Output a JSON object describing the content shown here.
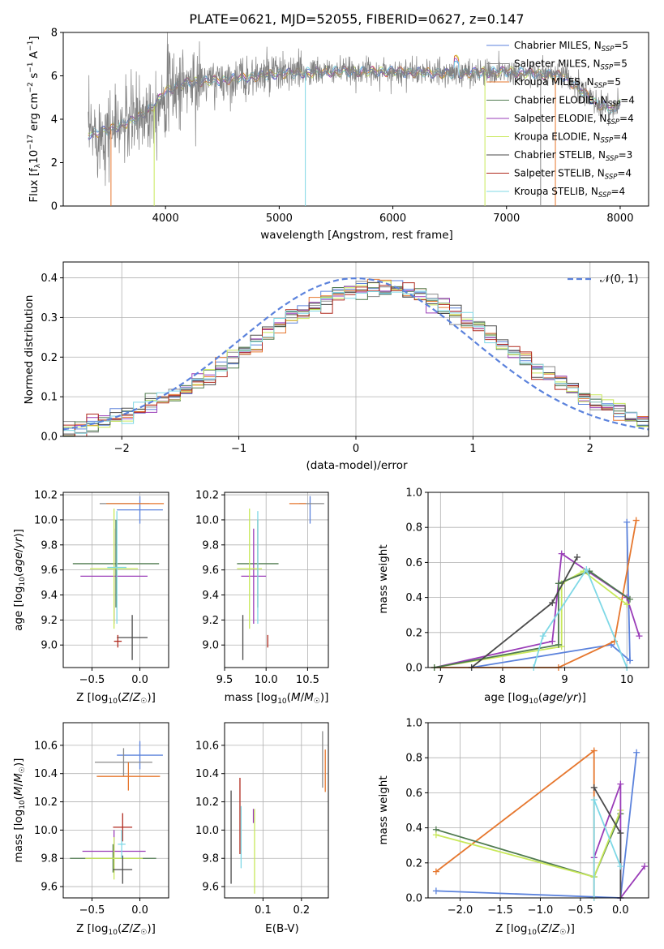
{
  "figure": {
    "title": "PLATE=0621, MJD=52055, FIBERID=0627, z=0.147"
  },
  "colors": {
    "Chabrier MILES": "#5b82dc",
    "Salpeter MILES": "#8a8a8a",
    "Kroupa MILES": "#e6772e",
    "Chabrier ELODIE": "#4f7a4f",
    "Salpeter ELODIE": "#9a3cb8",
    "Kroupa ELODIE": "#c8e85a",
    "Chabrier STELIB": "#4a4a4a",
    "Salpeter STELIB": "#b02a1e",
    "Kroupa STELIB": "#7fd8e6",
    "gaussian": "#5b82dc"
  },
  "chart_data": [
    {
      "id": "spectrum",
      "type": "line",
      "xlabel": "wavelength [Angstrom, rest frame]",
      "ylabel": "Flux [f_λ10^-17 erg cm^-2 s^-1 A^-1]",
      "xlim": [
        3100,
        8250
      ],
      "ylim": [
        0,
        8
      ],
      "xticks": [
        4000,
        5000,
        6000,
        7000,
        8000
      ],
      "yticks": [
        0,
        2,
        4,
        6,
        8
      ],
      "continuum": [
        [
          3320,
          3.3
        ],
        [
          3500,
          3.5
        ],
        [
          3700,
          3.9
        ],
        [
          3900,
          4.6
        ],
        [
          4000,
          5.3
        ],
        [
          4200,
          5.7
        ],
        [
          4500,
          5.8
        ],
        [
          5000,
          6.1
        ],
        [
          5500,
          6.2
        ],
        [
          6000,
          6.2
        ],
        [
          6500,
          6.1
        ],
        [
          7000,
          6.2
        ],
        [
          7500,
          6.0
        ],
        [
          7800,
          4.7
        ],
        [
          7950,
          4.4
        ],
        [
          8000,
          4.9
        ]
      ],
      "legend": [
        {
          "label": "Chabrier MILES",
          "nssp": "N_SSP=5"
        },
        {
          "label": "Salpeter MILES",
          "nssp": "N_SSP=5"
        },
        {
          "label": "Kroupa MILES",
          "nssp": "N_SSP=5"
        },
        {
          "label": "Chabrier ELODIE",
          "nssp": "N_SSP=4"
        },
        {
          "label": "Salpeter ELODIE",
          "nssp": "N_SSP=4"
        },
        {
          "label": "Kroupa ELODIE",
          "nssp": "N_SSP=4"
        },
        {
          "label": "Chabrier STELIB",
          "nssp": "N_SSP=3"
        },
        {
          "label": "Salpeter STELIB",
          "nssp": "N_SSP=4"
        },
        {
          "label": "Kroupa STELIB",
          "nssp": "N_SSP=4"
        }
      ],
      "legend_placement": "lower-right",
      "grid": false
    },
    {
      "id": "residuals",
      "type": "area",
      "xlabel": "(data-model)/error",
      "ylabel": "Normed distribution",
      "xlim": [
        -2.5,
        2.5
      ],
      "ylim": [
        0,
        0.44
      ],
      "xticks": [
        -2,
        -1,
        0,
        1,
        2
      ],
      "yticks": [
        0.0,
        0.1,
        0.2,
        0.3,
        0.4
      ],
      "legend": [
        {
          "label": "𝒩(0, 1)"
        }
      ],
      "legend_placement": "upper-right",
      "grid": true
    },
    {
      "id": "age_vs_Z",
      "type": "scatter",
      "xlabel": "Z [log10(Z/Z☉)]",
      "ylabel": "age  [log10(age/yr)]",
      "xlim": [
        -0.8,
        0.3
      ],
      "ylim": [
        8.82,
        10.22
      ],
      "xticks": [
        -0.5,
        0.0
      ],
      "yticks": [
        9.0,
        9.2,
        9.4,
        9.6,
        9.8,
        10.0,
        10.2
      ],
      "grid": true,
      "points": [
        {
          "model": "Chabrier MILES",
          "x": 0.0,
          "xerr": 0.24,
          "y": 10.08,
          "yerr": 0.11
        },
        {
          "model": "Salpeter MILES",
          "x": -0.16,
          "xerr": 0.26,
          "y": 10.13,
          "yerr": 0.0
        },
        {
          "model": "Kroupa MILES",
          "x": -0.05,
          "xerr": 0.3,
          "y": 10.13,
          "yerr": 0.0
        },
        {
          "model": "Chabrier ELODIE",
          "x": -0.25,
          "xerr": 0.45,
          "y": 9.65,
          "yerr": 0.35
        },
        {
          "model": "Salpeter ELODIE",
          "x": -0.27,
          "xerr": 0.35,
          "y": 9.55,
          "yerr": 0.38
        },
        {
          "model": "Kroupa ELODIE",
          "x": -0.27,
          "xerr": 0.25,
          "y": 9.61,
          "yerr": 0.48
        },
        {
          "model": "Chabrier STELIB",
          "x": -0.08,
          "xerr": 0.16,
          "y": 9.06,
          "yerr": 0.18
        },
        {
          "model": "Salpeter STELIB",
          "x": -0.23,
          "xerr": 0.04,
          "y": 9.03,
          "yerr": 0.05
        },
        {
          "model": "Kroupa STELIB",
          "x": -0.24,
          "xerr": 0.1,
          "y": 9.62,
          "yerr": 0.45
        }
      ]
    },
    {
      "id": "age_vs_mass",
      "type": "scatter",
      "xlabel": "mass [log10(M/M☉)]",
      "ylabel": "",
      "xlim": [
        9.5,
        10.75
      ],
      "ylim": [
        8.82,
        10.22
      ],
      "xticks": [
        9.5,
        10.0,
        10.5
      ],
      "yticks": [
        9.0,
        9.2,
        9.4,
        9.6,
        9.8,
        10.0,
        10.2
      ],
      "grid": true,
      "points": [
        {
          "model": "Chabrier MILES",
          "x": 10.53,
          "xerr": 0.0,
          "y": 10.08,
          "yerr": 0.11
        },
        {
          "model": "Salpeter MILES",
          "x": 10.55,
          "xerr": 0.15,
          "y": 10.13,
          "yerr": 0.0
        },
        {
          "model": "Kroupa MILES",
          "x": 10.38,
          "xerr": 0.1,
          "y": 10.13,
          "yerr": 0.0
        },
        {
          "model": "Chabrier ELODIE",
          "x": 9.9,
          "xerr": 0.25,
          "y": 9.65,
          "yerr": 0.35
        },
        {
          "model": "Salpeter ELODIE",
          "x": 9.85,
          "xerr": 0.15,
          "y": 9.55,
          "yerr": 0.38
        },
        {
          "model": "Kroupa ELODIE",
          "x": 9.8,
          "xerr": 0.15,
          "y": 9.61,
          "yerr": 0.48
        },
        {
          "model": "Chabrier STELIB",
          "x": 9.72,
          "xerr": 0.0,
          "y": 9.06,
          "yerr": 0.18
        },
        {
          "model": "Salpeter STELIB",
          "x": 10.02,
          "xerr": 0.0,
          "y": 9.03,
          "yerr": 0.05
        },
        {
          "model": "Kroupa STELIB",
          "x": 9.9,
          "xerr": 0.0,
          "y": 9.62,
          "yerr": 0.45
        }
      ]
    },
    {
      "id": "mass_weight_vs_age",
      "type": "line",
      "xlabel": "age  [log10(age/yr)]",
      "ylabel": "mass weight",
      "xlim": [
        6.8,
        10.35
      ],
      "ylim": [
        0,
        1
      ],
      "xticks": [
        7,
        8,
        9,
        10
      ],
      "yticks": [
        0.0,
        0.2,
        0.4,
        0.6,
        0.8,
        1.0
      ],
      "grid": true,
      "series": [
        {
          "name": "Chabrier MILES",
          "x": [
            10.0,
            10.05,
            9.75,
            7.5
          ],
          "y": [
            0.83,
            0.04,
            0.13,
            0.0
          ]
        },
        {
          "name": "Kroupa MILES",
          "x": [
            10.15,
            9.8,
            8.9,
            6.9
          ],
          "y": [
            0.84,
            0.15,
            0.0,
            0.0
          ]
        },
        {
          "name": "Salpeter ELODIE",
          "x": [
            10.2,
            10.0,
            8.95,
            8.8,
            6.9
          ],
          "y": [
            0.18,
            0.4,
            0.65,
            0.15,
            0.0
          ]
        },
        {
          "name": "Kroupa ELODIE",
          "x": [
            10.0,
            9.3,
            8.95,
            8.95,
            6.9
          ],
          "y": [
            0.36,
            0.55,
            0.48,
            0.12,
            0.0
          ]
        },
        {
          "name": "Chabrier ELODIE",
          "x": [
            10.05,
            9.4,
            8.9,
            8.9,
            6.9
          ],
          "y": [
            0.39,
            0.55,
            0.48,
            0.13,
            0.0
          ]
        },
        {
          "name": "Chabrier STELIB",
          "x": [
            9.2,
            8.8,
            7.5
          ],
          "y": [
            0.63,
            0.37,
            0.0
          ]
        },
        {
          "name": "Kroupa STELIB",
          "x": [
            8.5,
            8.65,
            9.35,
            10.0
          ],
          "y": [
            0.0,
            0.18,
            0.56,
            0.0
          ]
        }
      ]
    },
    {
      "id": "mass_vs_Z",
      "type": "scatter",
      "xlabel": "Z [log10(Z/Z☉)]",
      "ylabel": "mass [log10(M/M☉)]",
      "xlim": [
        -0.8,
        0.3
      ],
      "ylim": [
        9.52,
        10.76
      ],
      "xticks": [
        -0.5,
        0.0
      ],
      "yticks": [
        9.6,
        9.8,
        10.0,
        10.2,
        10.4,
        10.6
      ],
      "grid": true,
      "points": [
        {
          "model": "Chabrier MILES",
          "x": 0.0,
          "xerr": 0.24,
          "y": 10.53,
          "yerr": 0.1
        },
        {
          "model": "Salpeter MILES",
          "x": -0.17,
          "xerr": 0.3,
          "y": 10.48,
          "yerr": 0.1
        },
        {
          "model": "Kroupa MILES",
          "x": -0.12,
          "xerr": 0.33,
          "y": 10.38,
          "yerr": 0.1
        },
        {
          "model": "Chabrier ELODIE",
          "x": -0.28,
          "xerr": 0.45,
          "y": 9.8,
          "yerr": 0.1
        },
        {
          "model": "Salpeter ELODIE",
          "x": -0.27,
          "xerr": 0.33,
          "y": 9.85,
          "yerr": 0.15
        },
        {
          "model": "Kroupa ELODIE",
          "x": -0.27,
          "xerr": 0.3,
          "y": 9.8,
          "yerr": 0.15
        },
        {
          "model": "Chabrier STELIB",
          "x": -0.18,
          "xerr": 0.1,
          "y": 9.72,
          "yerr": 0.1
        },
        {
          "model": "Salpeter STELIB",
          "x": -0.18,
          "xerr": 0.1,
          "y": 10.02,
          "yerr": 0.1
        },
        {
          "model": "Kroupa STELIB",
          "x": -0.19,
          "xerr": 0.04,
          "y": 9.9,
          "yerr": 0.1
        }
      ]
    },
    {
      "id": "mass_vs_EBV",
      "type": "scatter",
      "xlabel": "E(B-V)",
      "ylabel": "",
      "xlim": [
        0.0,
        0.27
      ],
      "ylim": [
        9.52,
        10.76
      ],
      "xticks": [
        0.1,
        0.2
      ],
      "yticks": [
        9.6,
        9.8,
        10.0,
        10.2,
        10.4,
        10.6
      ],
      "grid": true,
      "points": [
        {
          "model": "Salpeter MILES",
          "x": 0.255,
          "y": 10.5,
          "yerr": 0.2
        },
        {
          "model": "Kroupa MILES",
          "x": 0.262,
          "y": 10.42,
          "yerr": 0.15
        },
        {
          "model": "Chabrier STELIB",
          "x": 0.017,
          "y": 9.95,
          "yerr": 0.33
        },
        {
          "model": "Salpeter STELIB",
          "x": 0.04,
          "y": 10.1,
          "yerr": 0.27
        },
        {
          "model": "Kroupa STELIB",
          "x": 0.043,
          "y": 9.95,
          "yerr": 0.22
        },
        {
          "model": "Salpeter ELODIE",
          "x": 0.075,
          "y": 10.1,
          "yerr": 0.05
        },
        {
          "model": "Kroupa ELODIE",
          "x": 0.078,
          "y": 9.85,
          "yerr": 0.3
        }
      ]
    },
    {
      "id": "mass_weight_vs_Z",
      "type": "line",
      "xlabel": "Z [log10(Z/Z☉)]",
      "ylabel": "mass weight",
      "xlim": [
        -2.4,
        0.35
      ],
      "ylim": [
        0,
        1
      ],
      "xticks": [
        -2.0,
        -1.5,
        -1.0,
        -0.5,
        0.0
      ],
      "yticks": [
        0.0,
        0.2,
        0.4,
        0.6,
        0.8,
        1.0
      ],
      "grid": true,
      "series": [
        {
          "name": "Chabrier MILES",
          "x": [
            0.2,
            0.0,
            -2.3
          ],
          "y": [
            0.83,
            0.0,
            0.04
          ]
        },
        {
          "name": "Kroupa MILES",
          "x": [
            -2.3,
            -0.33,
            -0.33
          ],
          "y": [
            0.15,
            0.84,
            0.0
          ]
        },
        {
          "name": "Chabrier ELODIE",
          "x": [
            -2.3,
            -0.33,
            0.0
          ],
          "y": [
            0.39,
            0.12,
            0.48
          ]
        },
        {
          "name": "Kroupa ELODIE",
          "x": [
            -2.3,
            -0.33,
            0.0
          ],
          "y": [
            0.36,
            0.12,
            0.5
          ]
        },
        {
          "name": "Salpeter ELODIE",
          "x": [
            0.3,
            0.0,
            0.0,
            -0.33
          ],
          "y": [
            0.18,
            0.0,
            0.65,
            0.23
          ]
        },
        {
          "name": "Chabrier STELIB",
          "x": [
            -0.33,
            0.0,
            0.0
          ],
          "y": [
            0.63,
            0.37,
            0.0
          ]
        },
        {
          "name": "Kroupa STELIB",
          "x": [
            -0.33,
            -0.33,
            0.0
          ],
          "y": [
            0.0,
            0.56,
            0.18
          ]
        }
      ]
    }
  ]
}
